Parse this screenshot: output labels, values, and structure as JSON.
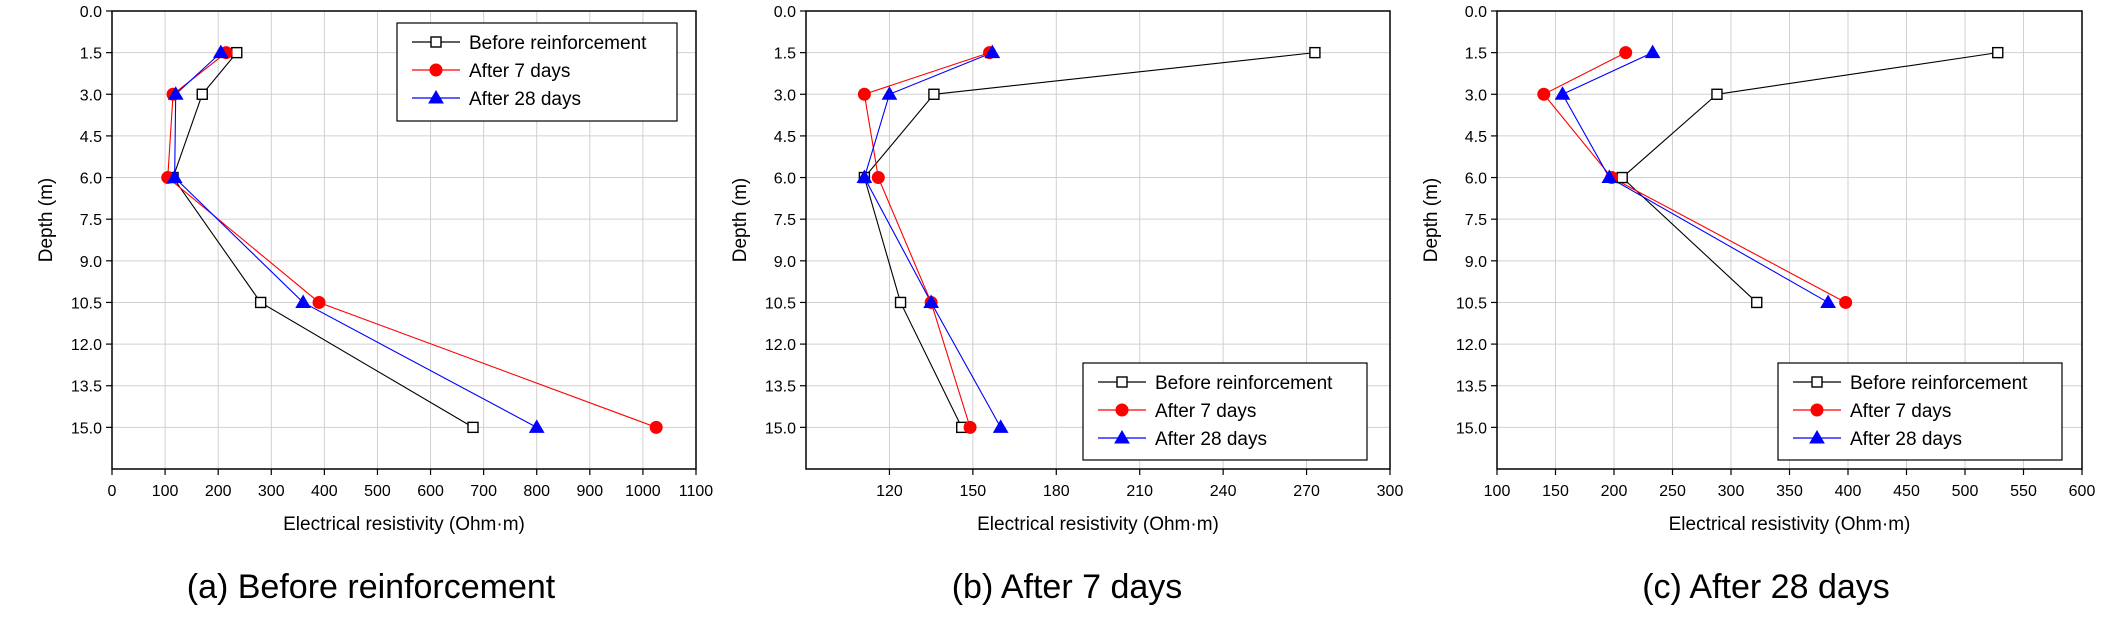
{
  "chart_data": [
    {
      "type": "line",
      "title": "",
      "caption": "(a) Before reinforcement",
      "xlabel": "Electrical resistivity (Ohm·m)",
      "ylabel": "Depth (m)",
      "xlim": [
        0,
        1100
      ],
      "ylim": [
        0,
        16.5
      ],
      "y_inverted": true,
      "grid": true,
      "legend_position": "top-right",
      "xticks": [
        0,
        100,
        200,
        300,
        400,
        500,
        600,
        700,
        800,
        900,
        1000,
        1100
      ],
      "yticks": [
        "0.0",
        "1.5",
        "3.0",
        "4.5",
        "6.0",
        "7.5",
        "9.0",
        "10.5",
        "12.0",
        "13.5",
        "15.0"
      ],
      "series": [
        {
          "name": "Before reinforcement",
          "color": "#000000",
          "marker": "square-open",
          "x": [
            235,
            170,
            115,
            280,
            680
          ],
          "y": [
            1.5,
            3.0,
            6.0,
            10.5,
            15.0
          ]
        },
        {
          "name": "After 7 days",
          "color": "#ff0000",
          "marker": "circle",
          "x": [
            215,
            115,
            105,
            390,
            1025
          ],
          "y": [
            1.5,
            3.0,
            6.0,
            10.5,
            15.0
          ]
        },
        {
          "name": "After 28 days",
          "color": "#0000ff",
          "marker": "triangle",
          "x": [
            205,
            120,
            118,
            360,
            800
          ],
          "y": [
            1.5,
            3.0,
            6.0,
            10.5,
            15.0
          ]
        }
      ]
    },
    {
      "type": "line",
      "title": "",
      "caption": "(b) After 7 days",
      "xlabel": "Electrical resistivity (Ohm·m)",
      "ylabel": "Depth (m)",
      "xlim": [
        90,
        300
      ],
      "ylim": [
        0,
        16.5
      ],
      "y_inverted": true,
      "grid": true,
      "legend_position": "bottom-right",
      "xticks": [
        120,
        150,
        180,
        210,
        240,
        270,
        300
      ],
      "yticks": [
        "0.0",
        "1.5",
        "3.0",
        "4.5",
        "6.0",
        "7.5",
        "9.0",
        "10.5",
        "12.0",
        "13.5",
        "15.0"
      ],
      "series": [
        {
          "name": "Before reinforcement",
          "color": "#000000",
          "marker": "square-open",
          "x": [
            273,
            136,
            111,
            124,
            146
          ],
          "y": [
            1.5,
            3.0,
            6.0,
            10.5,
            15.0
          ]
        },
        {
          "name": "After 7 days",
          "color": "#ff0000",
          "marker": "circle",
          "x": [
            156,
            111,
            116,
            135,
            149
          ],
          "y": [
            1.5,
            3.0,
            6.0,
            10.5,
            15.0
          ]
        },
        {
          "name": "After 28 days",
          "color": "#0000ff",
          "marker": "triangle",
          "x": [
            157,
            120,
            111,
            135,
            160
          ],
          "y": [
            1.5,
            3.0,
            6.0,
            10.5,
            15.0
          ]
        }
      ]
    },
    {
      "type": "line",
      "title": "",
      "caption": "(c) After 28 days",
      "xlabel": "Electrical resistivity (Ohm·m)",
      "ylabel": "Depth (m)",
      "xlim": [
        100,
        600
      ],
      "ylim": [
        0,
        16.5
      ],
      "y_inverted": true,
      "grid": true,
      "legend_position": "bottom-right",
      "xticks": [
        100,
        150,
        200,
        250,
        300,
        350,
        400,
        450,
        500,
        550,
        600
      ],
      "yticks": [
        "0.0",
        "1.5",
        "3.0",
        "4.5",
        "6.0",
        "7.5",
        "9.0",
        "10.5",
        "12.0",
        "13.5",
        "15.0"
      ],
      "series": [
        {
          "name": "Before reinforcement",
          "color": "#000000",
          "marker": "square-open",
          "x": [
            528,
            288,
            207,
            322
          ],
          "y": [
            1.5,
            3.0,
            6.0,
            10.5
          ]
        },
        {
          "name": "After 7 days",
          "color": "#ff0000",
          "marker": "circle",
          "x": [
            210,
            140,
            198,
            398
          ],
          "y": [
            1.5,
            3.0,
            6.0,
            10.5
          ]
        },
        {
          "name": "After 28 days",
          "color": "#0000ff",
          "marker": "triangle",
          "x": [
            233,
            156,
            196,
            383
          ],
          "y": [
            1.5,
            3.0,
            6.0,
            10.5
          ]
        }
      ]
    }
  ]
}
